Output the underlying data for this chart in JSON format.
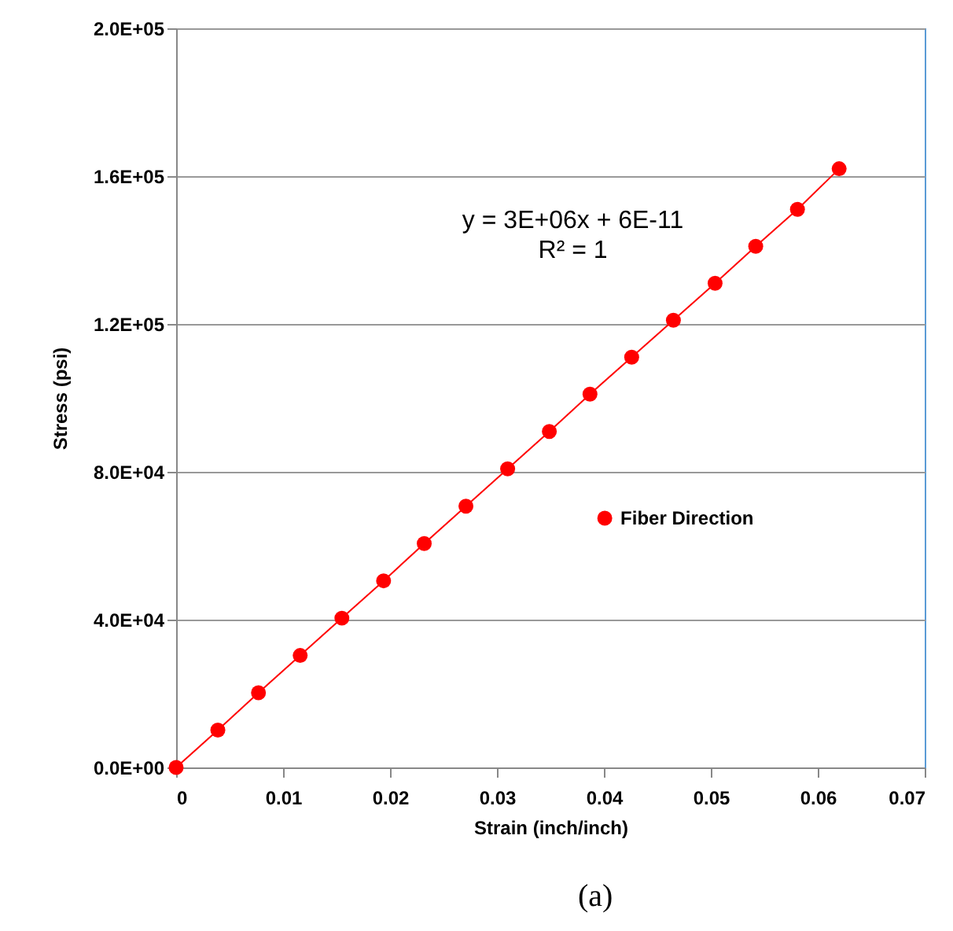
{
  "chart_data": {
    "type": "line",
    "xlabel": "Strain (inch/inch)",
    "ylabel": "Stress  (psi)",
    "x": [
      0,
      0.0039,
      0.0077,
      0.0116,
      0.0155,
      0.0194,
      0.0232,
      0.0271,
      0.031,
      0.0349,
      0.0387,
      0.0426,
      0.0465,
      0.0504,
      0.0542,
      0.0581,
      0.062
    ],
    "series": [
      {
        "name": "Fiber Direction",
        "color": "#ff0000",
        "values": [
          0,
          10100,
          20200,
          30300,
          40400,
          50500,
          60600,
          70700,
          80800,
          90900,
          101000,
          111000,
          121000,
          131000,
          141000,
          151000,
          162000
        ]
      }
    ],
    "xlim": [
      0,
      0.07
    ],
    "xticks": [
      0,
      0.01,
      0.02,
      0.03,
      0.04,
      0.05,
      0.06,
      0.07
    ],
    "ylim": [
      0,
      200000
    ],
    "yticks": [
      {
        "value": 0,
        "label": "0.0E+00"
      },
      {
        "value": 40000,
        "label": "4.0E+04"
      },
      {
        "value": 80000,
        "label": "8.0E+04"
      },
      {
        "value": 120000,
        "label": "1.2E+05"
      },
      {
        "value": 160000,
        "label": "1.6E+05"
      },
      {
        "value": 200000,
        "label": "2.0E+05"
      }
    ],
    "grid": "y",
    "legend": "right",
    "marker": "circle",
    "line_style": "solid",
    "annotations": [
      "y = 3E+06x + 6E-11",
      "R² = 1",
      "(a)"
    ]
  }
}
